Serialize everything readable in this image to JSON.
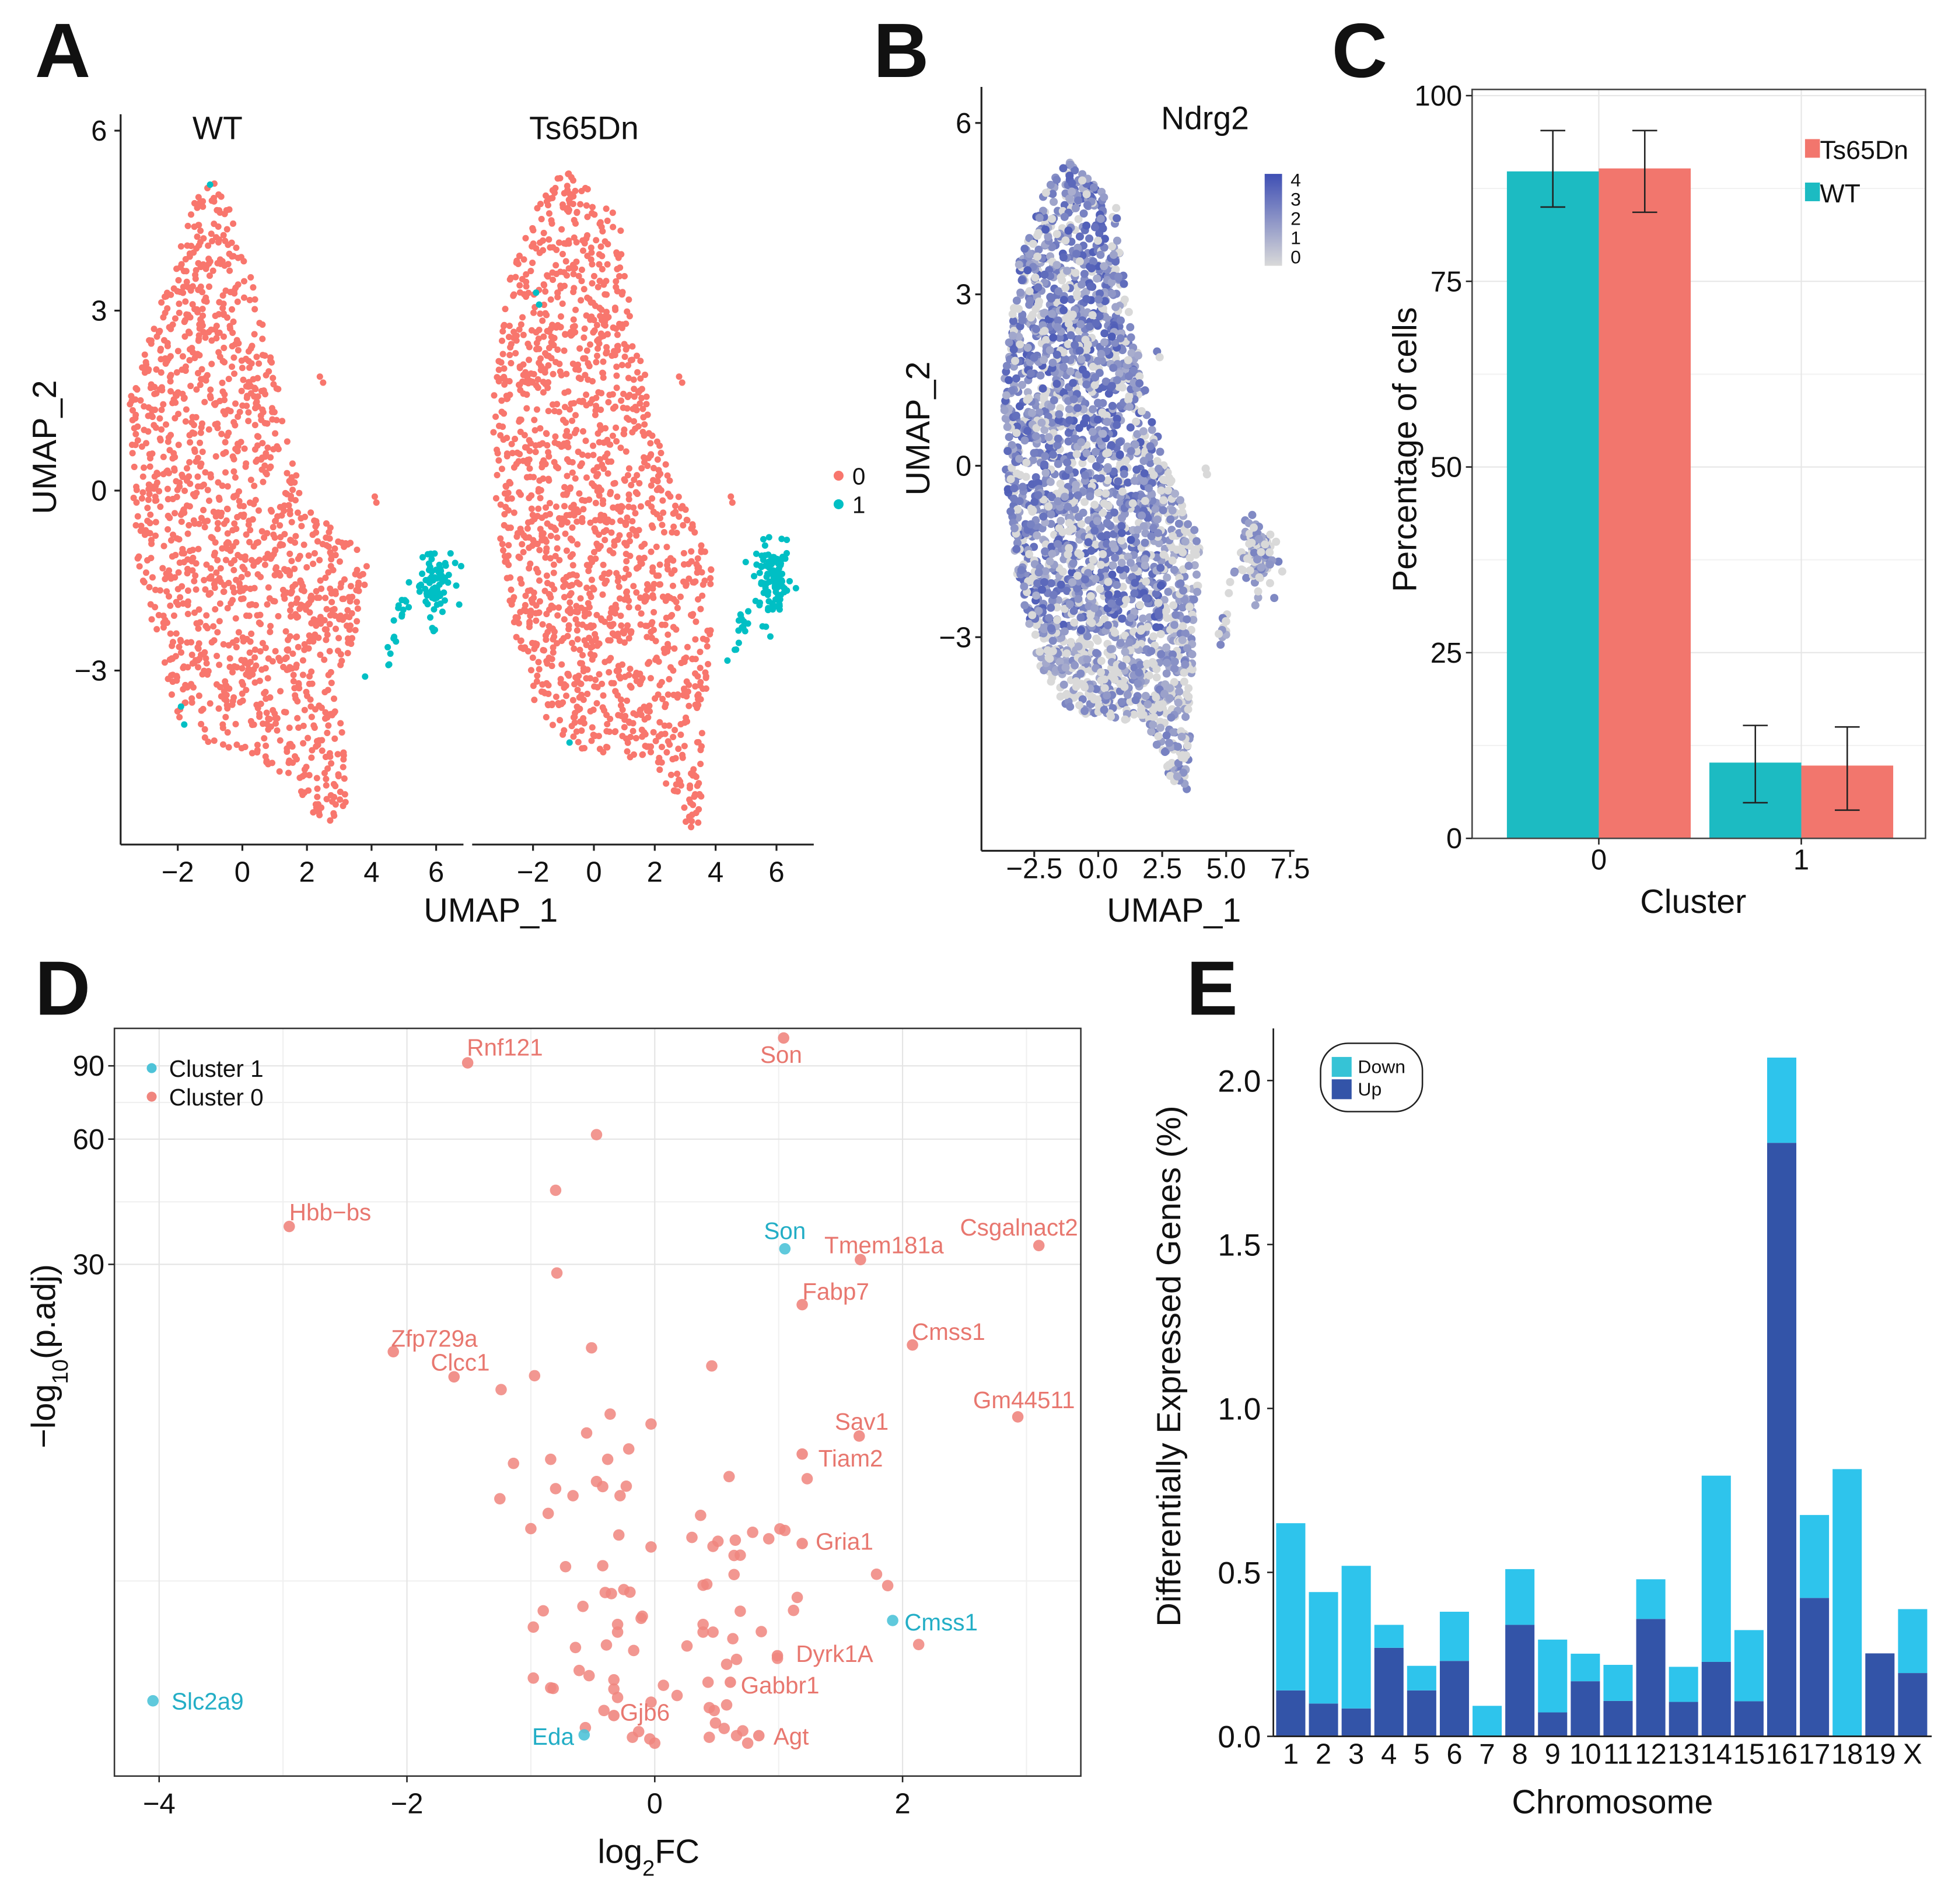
{
  "panels": {
    "A": "A",
    "B": "B",
    "C": "C",
    "D": "D",
    "E": "E"
  },
  "chart_data": [
    {
      "panel": "A",
      "type": "scatter",
      "facets": [
        "WT",
        "Ts65Dn"
      ],
      "xlabel": "UMAP_1",
      "ylabel": "UMAP_2",
      "xticks": [
        "−2",
        "0",
        "2",
        "4",
        "6"
      ],
      "yticks": [
        "−3",
        "0",
        "3",
        "6"
      ],
      "ytick_values": [
        -3,
        0,
        3,
        6
      ],
      "xtick_values": [
        -2,
        0,
        2,
        4,
        6
      ],
      "legend": {
        "position": "right",
        "entries": [
          "0",
          "1"
        ]
      },
      "colors": {
        "0": "#F8766D",
        "1": "#00BFC4"
      }
    },
    {
      "panel": "B",
      "type": "scatter",
      "title": "Ndrg2",
      "xlabel": "UMAP_1",
      "ylabel": "UMAP_2",
      "xticks": [
        "−2.5",
        "0.0",
        "2.5",
        "5.0",
        "7.5"
      ],
      "xtick_values": [
        -2.5,
        0,
        2.5,
        5,
        7.5
      ],
      "yticks": [
        "−3",
        "0",
        "3",
        "6"
      ],
      "ytick_values": [
        -3,
        0,
        3,
        6
      ],
      "colorbar": {
        "ticks": [
          "4",
          "3",
          "2",
          "1",
          "0"
        ],
        "low": "#D9D9D9",
        "high": "#3F4FB4",
        "range": [
          0,
          4
        ]
      }
    },
    {
      "panel": "C",
      "type": "bar",
      "xlabel": "Cluster",
      "ylabel": "Percentage of cells",
      "categories": [
        "0",
        "1"
      ],
      "yticks": [
        "0",
        "25",
        "50",
        "75",
        "100"
      ],
      "ylim": [
        0,
        100
      ],
      "legend": {
        "position": "top-right",
        "order": [
          "Ts65Dn",
          "WT"
        ]
      },
      "series": [
        {
          "name": "WT",
          "color": "#1CBBC2",
          "values": [
            89.8,
            10.2
          ],
          "err_low": [
            85.0,
            4.8
          ],
          "err_high": [
            95.3,
            15.2
          ]
        },
        {
          "name": "Ts65Dn",
          "color": "#F2766D",
          "values": [
            90.2,
            9.8
          ],
          "err_low": [
            84.3,
            3.8
          ],
          "err_high": [
            95.3,
            15.0
          ]
        }
      ],
      "grid": true
    },
    {
      "panel": "D",
      "type": "scatter",
      "xlabel_main": "log",
      "xlabel_sub": "2",
      "xlabel_tail": "FC",
      "ylabel_main": "−log",
      "ylabel_sub": "10",
      "ylabel_tail": "(p.adj)",
      "xticks": [
        "−4",
        "−2",
        "0",
        "2"
      ],
      "xtick_values": [
        -4,
        -2,
        0,
        2
      ],
      "yticks": [
        "30",
        "60",
        "90"
      ],
      "ytick_values": [
        30,
        60,
        90
      ],
      "y_scale": "log",
      "xlim": [
        -4.35,
        3.45
      ],
      "ylim": [
        1.75,
        111
      ],
      "legend": {
        "position": "top-left",
        "entries": [
          {
            "name": "Cluster 1",
            "color": "#4EC3D8"
          },
          {
            "name": "Cluster 0",
            "color": "#F0857E"
          }
        ]
      },
      "labeled_points": [
        {
          "x": -1.51,
          "y": 91.5,
          "cluster": 0,
          "label": "Rnf121"
        },
        {
          "x": 1.04,
          "y": 105,
          "cluster": 0,
          "label": "Son"
        },
        {
          "x": -2.95,
          "y": 37.0,
          "cluster": 0,
          "label": "Hbb−bs"
        },
        {
          "x": 1.05,
          "y": 32.7,
          "cluster": 1,
          "label": "Son"
        },
        {
          "x": 1.66,
          "y": 30.8,
          "cluster": 0,
          "label": "Tmem181a"
        },
        {
          "x": 3.1,
          "y": 33.3,
          "cluster": 0,
          "label": "Csgalnact2"
        },
        {
          "x": 1.19,
          "y": 24.0,
          "cluster": 0,
          "label": "Fabp7"
        },
        {
          "x": 2.08,
          "y": 19.2,
          "cluster": 0,
          "label": "Cmss1"
        },
        {
          "x": -2.11,
          "y": 18.5,
          "cluster": 0,
          "label": "Zfp729a"
        },
        {
          "x": -1.62,
          "y": 16.1,
          "cluster": 0,
          "label": "Clcc1"
        },
        {
          "x": 2.93,
          "y": 12.9,
          "cluster": 0,
          "label": "Gm44511"
        },
        {
          "x": 1.65,
          "y": 11.6,
          "cluster": 0,
          "label": "Sav1"
        },
        {
          "x": 1.19,
          "y": 10.5,
          "cluster": 0,
          "label": "Tiam2"
        },
        {
          "x": 1.19,
          "y": 6.4,
          "cluster": 0,
          "label": "Gria1"
        },
        {
          "x": 1.92,
          "y": 4.18,
          "cluster": 1,
          "label": "Cmss1"
        },
        {
          "x": 0.99,
          "y": 3.44,
          "cluster": 0,
          "label": "Dyrk1A"
        },
        {
          "x": 0.61,
          "y": 2.97,
          "cluster": 0,
          "label": "Gabbr1"
        },
        {
          "x": -4.05,
          "y": 2.68,
          "cluster": 1,
          "label": "Slc2a9"
        },
        {
          "x": -0.33,
          "y": 2.47,
          "cluster": 0,
          "label": "Gjb6"
        },
        {
          "x": -0.57,
          "y": 2.22,
          "cluster": 1,
          "label": "Eda"
        },
        {
          "x": 0.84,
          "y": 2.21,
          "cluster": 0,
          "label": "Agt"
        }
      ],
      "points": [
        [
          -0.47,
          61.5
        ],
        [
          -0.8,
          45.2
        ],
        [
          -0.79,
          28.6
        ],
        [
          -0.51,
          18.9
        ],
        [
          0.46,
          17.1
        ],
        [
          -0.97,
          16.2
        ],
        [
          -1.24,
          15.0
        ],
        [
          -0.36,
          13.1
        ],
        [
          -0.03,
          12.4
        ],
        [
          -0.55,
          11.8
        ],
        [
          -0.21,
          10.8
        ],
        [
          -1.14,
          9.97
        ],
        [
          -0.84,
          10.2
        ],
        [
          -0.38,
          10.2
        ],
        [
          0.6,
          9.27
        ],
        [
          1.23,
          9.16
        ],
        [
          -0.47,
          9.02
        ],
        [
          -0.42,
          8.77
        ],
        [
          -0.23,
          8.79
        ],
        [
          -0.8,
          8.67
        ],
        [
          -0.66,
          8.34
        ],
        [
          -0.28,
          8.34
        ],
        [
          -1.25,
          8.2
        ],
        [
          -0.86,
          7.56
        ],
        [
          0.37,
          7.48
        ],
        [
          -1.0,
          6.95
        ],
        [
          -0.29,
          6.71
        ],
        [
          1.01,
          6.94
        ],
        [
          1.05,
          6.88
        ],
        [
          0.79,
          6.81
        ],
        [
          0.3,
          6.62
        ],
        [
          0.51,
          6.48
        ],
        [
          0.65,
          6.52
        ],
        [
          0.92,
          6.57
        ],
        [
          -0.03,
          6.28
        ],
        [
          0.47,
          6.3
        ],
        [
          0.64,
          5.99
        ],
        [
          0.69,
          6.0
        ],
        [
          -0.72,
          5.63
        ],
        [
          -0.42,
          5.66
        ],
        [
          0.64,
          5.39
        ],
        [
          1.79,
          5.4
        ],
        [
          1.88,
          5.07
        ],
        [
          0.39,
          5.08
        ],
        [
          0.42,
          5.11
        ],
        [
          -0.4,
          4.88
        ],
        [
          -0.35,
          4.85
        ],
        [
          -0.25,
          4.96
        ],
        [
          -0.2,
          4.89
        ],
        [
          1.15,
          4.75
        ],
        [
          -0.58,
          4.52
        ],
        [
          -0.9,
          4.41
        ],
        [
          0.69,
          4.4
        ],
        [
          1.12,
          4.42
        ],
        [
          -0.1,
          4.28
        ],
        [
          -0.11,
          4.23
        ],
        [
          -0.98,
          4.03
        ],
        [
          -0.3,
          4.09
        ],
        [
          0.39,
          4.09
        ],
        [
          0.86,
          3.93
        ],
        [
          -0.3,
          3.92
        ],
        [
          0.39,
          3.92
        ],
        [
          0.47,
          3.92
        ],
        [
          0.63,
          3.78
        ],
        [
          -0.64,
          3.6
        ],
        [
          -0.39,
          3.65
        ],
        [
          -0.17,
          3.54
        ],
        [
          0.26,
          3.63
        ],
        [
          2.13,
          3.66
        ],
        [
          0.99,
          3.39
        ],
        [
          0.66,
          3.37
        ],
        [
          0.58,
          3.28
        ],
        [
          -0.61,
          3.17
        ],
        [
          -0.53,
          3.08
        ],
        [
          -0.98,
          3.04
        ],
        [
          -0.33,
          3.01
        ],
        [
          -0.84,
          2.88
        ],
        [
          -0.82,
          2.87
        ],
        [
          0.43,
          2.97
        ],
        [
          0.07,
          2.92
        ],
        [
          -0.33,
          2.86
        ],
        [
          0.18,
          2.76
        ],
        [
          -0.3,
          2.73
        ],
        [
          -0.03,
          2.66
        ],
        [
          0.58,
          2.62
        ],
        [
          0.44,
          2.58
        ],
        [
          0.48,
          2.54
        ],
        [
          -0.41,
          2.54
        ],
        [
          -0.56,
          2.31
        ],
        [
          0.49,
          2.37
        ],
        [
          0.56,
          2.3
        ],
        [
          -0.13,
          2.26
        ],
        [
          0.71,
          2.27
        ],
        [
          0.66,
          2.21
        ],
        [
          0.75,
          2.12
        ],
        [
          -0.18,
          2.19
        ],
        [
          -0.04,
          2.17
        ],
        [
          0.0,
          2.12
        ],
        [
          0.44,
          2.19
        ]
      ]
    },
    {
      "panel": "E",
      "type": "bar",
      "stacked": true,
      "xlabel": "Chromosome",
      "ylabel": "Differentially Expressed Genes (%)",
      "categories": [
        "1",
        "2",
        "3",
        "4",
        "5",
        "6",
        "7",
        "8",
        "9",
        "10",
        "11",
        "12",
        "13",
        "14",
        "15",
        "16",
        "17",
        "18",
        "19",
        "X"
      ],
      "yticks": [
        "0.0",
        "0.5",
        "1.0",
        "1.5",
        "2.0"
      ],
      "ylim": [
        0,
        2.15
      ],
      "legend": {
        "position": "top-left",
        "order": [
          "Down",
          "Up"
        ]
      },
      "series": [
        {
          "name": "Up",
          "color": "#3354A8",
          "values": [
            0.14,
            0.1,
            0.085,
            0.27,
            0.14,
            0.23,
            0.0,
            0.34,
            0.073,
            0.168,
            0.108,
            0.358,
            0.105,
            0.227,
            0.107,
            1.81,
            0.422,
            0.0,
            0.253,
            0.193
          ]
        },
        {
          "name": "Down",
          "color": "#2EC4EC",
          "values": [
            0.51,
            0.34,
            0.435,
            0.07,
            0.075,
            0.15,
            0.093,
            0.17,
            0.222,
            0.084,
            0.11,
            0.121,
            0.107,
            0.568,
            0.217,
            0.26,
            0.253,
            0.815,
            0.0,
            0.195
          ]
        }
      ]
    }
  ]
}
